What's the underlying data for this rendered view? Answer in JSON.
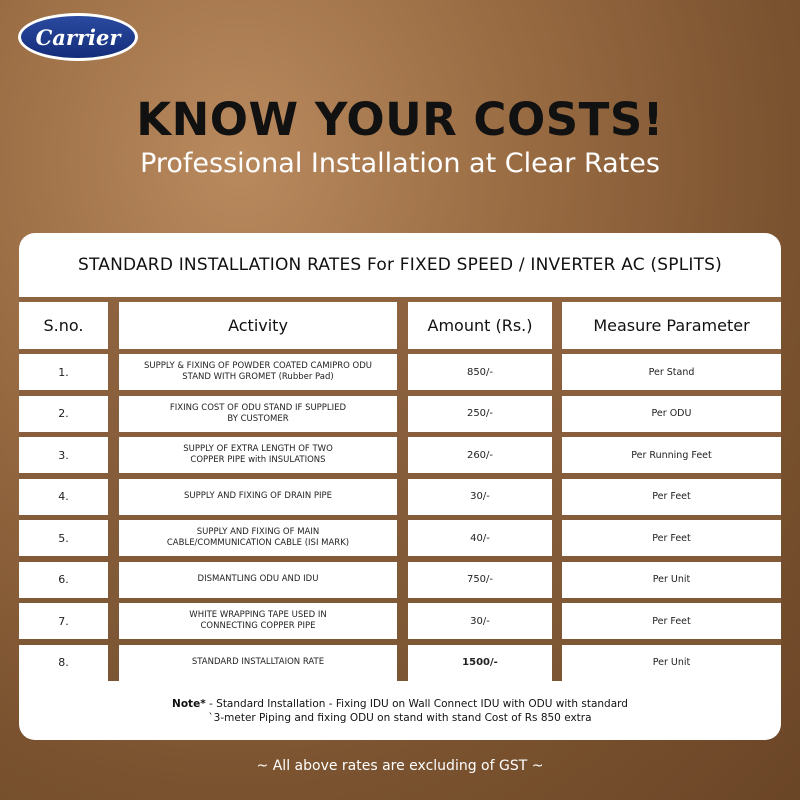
{
  "brand": {
    "logo_text": "Carrier",
    "logo_color": "#1f3c8f"
  },
  "headline": "KNOW YOUR COSTS!",
  "subheadline": "Professional Installation at Clear Rates",
  "table": {
    "title": "STANDARD INSTALLATION RATES For FIXED SPEED / INVERTER AC (SPLITS)",
    "headers": [
      "S.no.",
      "Activity",
      "Amount (Rs.)",
      "Measure Parameter"
    ],
    "rows": [
      {
        "sno": "1.",
        "activity_lines": [
          "SUPPLY & FIXING OF POWDER COATED CAMIPRO ODU",
          "STAND WITH GROMET (Rubber Pad)"
        ],
        "amount": "850/-",
        "measure": "Per Stand"
      },
      {
        "sno": "2.",
        "activity_lines": [
          "FIXING COST OF ODU STAND IF SUPPLIED",
          "BY CUSTOMER"
        ],
        "amount": "250/-",
        "measure": "Per ODU"
      },
      {
        "sno": "3.",
        "activity_lines": [
          "SUPPLY OF EXTRA LENGTH OF TWO",
          "COPPER PIPE with INSULATIONS"
        ],
        "amount": "260/-",
        "measure": "Per Running Feet"
      },
      {
        "sno": "4.",
        "activity_lines": [
          "SUPPLY AND FIXING OF DRAIN PIPE"
        ],
        "amount": "30/-",
        "measure": "Per Feet"
      },
      {
        "sno": "5.",
        "activity_lines": [
          "SUPPLY AND FIXING OF MAIN",
          "CABLE/COMMUNICATION CABLE (ISI MARK)"
        ],
        "amount": "40/-",
        "measure": "Per Feet"
      },
      {
        "sno": "6.",
        "activity_lines": [
          "DISMANTLING ODU AND IDU"
        ],
        "amount": "750/-",
        "measure": "Per Unit"
      },
      {
        "sno": "7.",
        "activity_lines": [
          "WHITE WRAPPING TAPE USED IN",
          "CONNECTING COPPER PIPE"
        ],
        "amount": "30/-",
        "measure": "Per Feet"
      },
      {
        "sno": "8.",
        "activity_lines": [
          "STANDARD INSTALLTAION RATE"
        ],
        "amount": "1500/-",
        "measure": "Per Unit"
      }
    ],
    "bold_amount_row": 7
  },
  "note": {
    "label": "Note*",
    "line1": " - Standard Installation - Fixing IDU on Wall Connect IDU with ODU with standard",
    "line2": "`3-meter Piping and fixing ODU on stand with stand Cost of Rs 850 extra"
  },
  "footer": "~ All above rates are excluding of GST ~"
}
